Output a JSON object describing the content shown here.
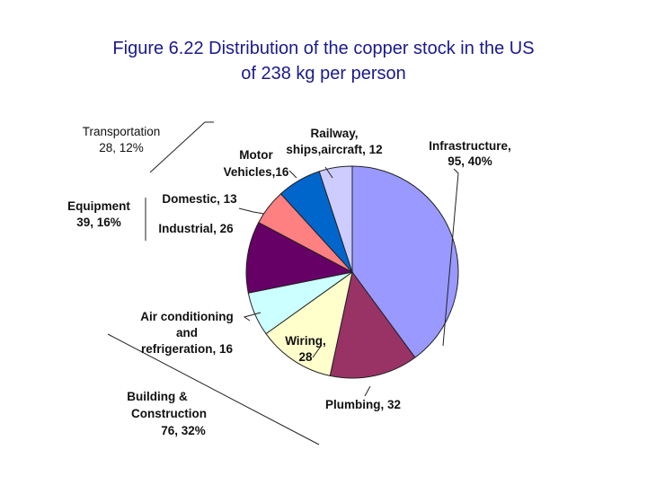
{
  "title_line1": "Figure 6.22 Distribution of the copper stock in the US",
  "title_line2": "of 238 kg per person",
  "chart_data": {
    "type": "pie",
    "title": "Figure 6.22 Distribution of the copper stock in the US of 238 kg per person",
    "unit": "kg per person",
    "total": 238,
    "slices": [
      {
        "name": "Infrastructure",
        "value": 95,
        "color": "#9999ff",
        "label_lines": [
          "Infrastructure,",
          "95, 40%"
        ]
      },
      {
        "name": "Plumbing",
        "value": 32,
        "color": "#993366",
        "label_lines": [
          "Plumbing, 32"
        ]
      },
      {
        "name": "Wiring",
        "value": 28,
        "color": "#ffffcc",
        "label_lines": [
          "Wiring,",
          "28"
        ]
      },
      {
        "name": "Air conditioning and refrigeration",
        "value": 16,
        "color": "#ccffff",
        "label_lines": [
          "Air conditioning",
          "and",
          "refrigeration, 16"
        ]
      },
      {
        "name": "Industrial",
        "value": 26,
        "color": "#660066",
        "label_lines": [
          "Industrial, 26"
        ]
      },
      {
        "name": "Domestic",
        "value": 13,
        "color": "#ff8080",
        "label_lines": [
          "Domestic, 13"
        ]
      },
      {
        "name": "Motor Vehicles",
        "value": 16,
        "color": "#0066cc",
        "label_lines": [
          "Motor",
          "Vehicles,16"
        ]
      },
      {
        "name": "Railway, ships, aircraft",
        "value": 12,
        "color": "#ccccff",
        "label_lines": [
          "Railway,",
          "ships,aircraft, 12"
        ]
      }
    ],
    "groups": [
      {
        "name": "Transportation",
        "label_lines": [
          "Transportation",
          "28, 12%"
        ]
      },
      {
        "name": "Equipment",
        "label_lines": [
          "Equipment",
          "39, 16%"
        ]
      },
      {
        "name": "Building & Construction",
        "label_lines": [
          "Building &",
          "Construction",
          "76, 32%"
        ]
      }
    ]
  }
}
